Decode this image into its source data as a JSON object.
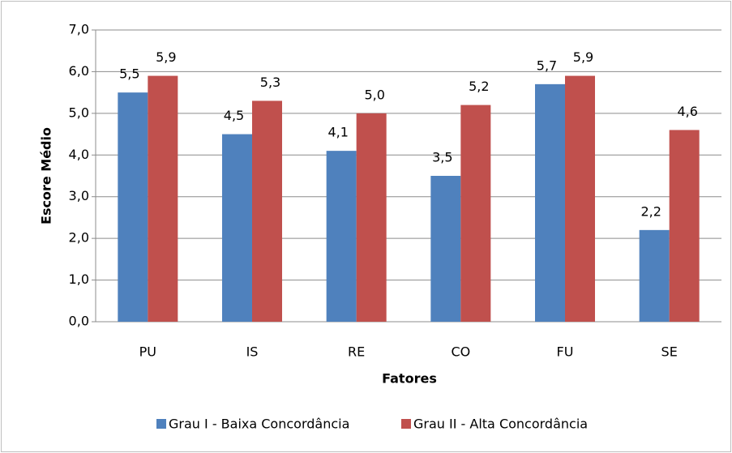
{
  "chart_data": {
    "type": "bar",
    "x_label": "Fatores",
    "y_label": "Escore Médio",
    "categories": [
      "PU",
      "IS",
      "RE",
      "CO",
      "FU",
      "SE"
    ],
    "series": [
      {
        "name": "Grau I - Baixa Concordância",
        "color": "#4f81bd",
        "values": [
          5.5,
          4.5,
          4.1,
          3.5,
          5.7,
          2.2
        ],
        "value_labels": [
          "5,5",
          "4,5",
          "4,1",
          "3,5",
          "5,7",
          "2,2"
        ]
      },
      {
        "name": "Grau II - Alta Concordância",
        "color": "#c0504d",
        "values": [
          5.9,
          5.3,
          5.0,
          5.2,
          5.9,
          4.6
        ],
        "value_labels": [
          "5,9",
          "5,3",
          "5,0",
          "5,2",
          "5,9",
          "4,6"
        ]
      }
    ],
    "ylim": [
      0,
      7
    ],
    "yticks": [
      {
        "value": 0,
        "label": "0,0"
      },
      {
        "value": 1,
        "label": "1,0"
      },
      {
        "value": 2,
        "label": "2,0"
      },
      {
        "value": 3,
        "label": "3,0"
      },
      {
        "value": 4,
        "label": "4,0"
      },
      {
        "value": 5,
        "label": "5,0"
      },
      {
        "value": 6,
        "label": "6,0"
      },
      {
        "value": 7,
        "label": "7,0"
      }
    ],
    "grid": true,
    "legend": "bottom"
  }
}
